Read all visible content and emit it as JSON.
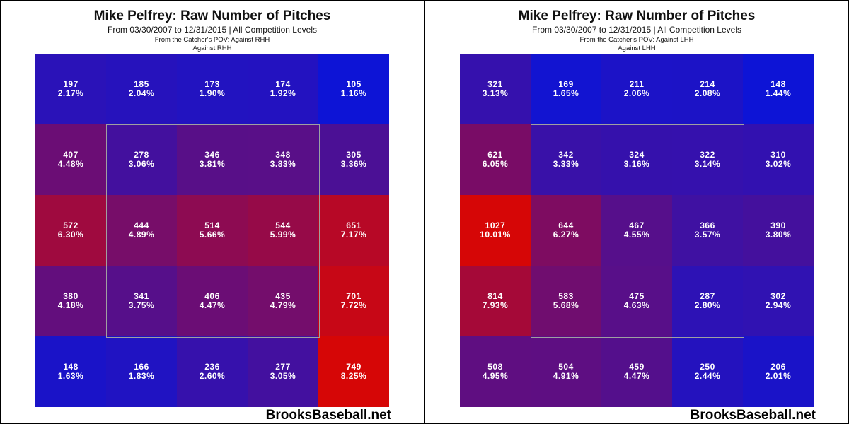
{
  "chart_data": [
    {
      "type": "heatmap",
      "title": "Mike Pelfrey: Raw Number of Pitches",
      "subtitle": "From 03/30/2007 to 12/31/2015 | All Competition Levels",
      "pov_line": "From the Catcher's POV:   Against RHH",
      "split_line": "Against RHH",
      "watermark": "BrooksBaseball.net",
      "grid": [
        [
          {
            "count": "197",
            "pct": "2.17%"
          },
          {
            "count": "185",
            "pct": "2.04%"
          },
          {
            "count": "173",
            "pct": "1.90%"
          },
          {
            "count": "174",
            "pct": "1.92%"
          },
          {
            "count": "105",
            "pct": "1.16%"
          }
        ],
        [
          {
            "count": "407",
            "pct": "4.48%"
          },
          {
            "count": "278",
            "pct": "3.06%"
          },
          {
            "count": "346",
            "pct": "3.81%"
          },
          {
            "count": "348",
            "pct": "3.83%"
          },
          {
            "count": "305",
            "pct": "3.36%"
          }
        ],
        [
          {
            "count": "572",
            "pct": "6.30%"
          },
          {
            "count": "444",
            "pct": "4.89%"
          },
          {
            "count": "514",
            "pct": "5.66%"
          },
          {
            "count": "544",
            "pct": "5.99%"
          },
          {
            "count": "651",
            "pct": "7.17%"
          }
        ],
        [
          {
            "count": "380",
            "pct": "4.18%"
          },
          {
            "count": "341",
            "pct": "3.75%"
          },
          {
            "count": "406",
            "pct": "4.47%"
          },
          {
            "count": "435",
            "pct": "4.79%"
          },
          {
            "count": "701",
            "pct": "7.72%"
          }
        ],
        [
          {
            "count": "148",
            "pct": "1.63%"
          },
          {
            "count": "166",
            "pct": "1.83%"
          },
          {
            "count": "236",
            "pct": "2.60%"
          },
          {
            "count": "277",
            "pct": "3.05%"
          },
          {
            "count": "749",
            "pct": "8.25%"
          }
        ]
      ]
    },
    {
      "type": "heatmap",
      "title": "Mike Pelfrey: Raw Number of Pitches",
      "subtitle": "From 03/30/2007 to 12/31/2015 | All Competition Levels",
      "pov_line": "From the Catcher's POV:   Against LHH",
      "split_line": "Against LHH",
      "watermark": "BrooksBaseball.net",
      "grid": [
        [
          {
            "count": "321",
            "pct": "3.13%"
          },
          {
            "count": "169",
            "pct": "1.65%"
          },
          {
            "count": "211",
            "pct": "2.06%"
          },
          {
            "count": "214",
            "pct": "2.08%"
          },
          {
            "count": "148",
            "pct": "1.44%"
          }
        ],
        [
          {
            "count": "621",
            "pct": "6.05%"
          },
          {
            "count": "342",
            "pct": "3.33%"
          },
          {
            "count": "324",
            "pct": "3.16%"
          },
          {
            "count": "322",
            "pct": "3.14%"
          },
          {
            "count": "310",
            "pct": "3.02%"
          }
        ],
        [
          {
            "count": "1027",
            "pct": "10.01%"
          },
          {
            "count": "644",
            "pct": "6.27%"
          },
          {
            "count": "467",
            "pct": "4.55%"
          },
          {
            "count": "366",
            "pct": "3.57%"
          },
          {
            "count": "390",
            "pct": "3.80%"
          }
        ],
        [
          {
            "count": "814",
            "pct": "7.93%"
          },
          {
            "count": "583",
            "pct": "5.68%"
          },
          {
            "count": "475",
            "pct": "4.63%"
          },
          {
            "count": "287",
            "pct": "2.80%"
          },
          {
            "count": "302",
            "pct": "2.94%"
          }
        ],
        [
          {
            "count": "508",
            "pct": "4.95%"
          },
          {
            "count": "504",
            "pct": "4.91%"
          },
          {
            "count": "459",
            "pct": "4.47%"
          },
          {
            "count": "250",
            "pct": "2.44%"
          },
          {
            "count": "206",
            "pct": "2.01%"
          }
        ]
      ]
    }
  ],
  "colors": {
    "low": "#0d14d6",
    "high": "#d60606",
    "zone_border": "#a0a0a0"
  }
}
